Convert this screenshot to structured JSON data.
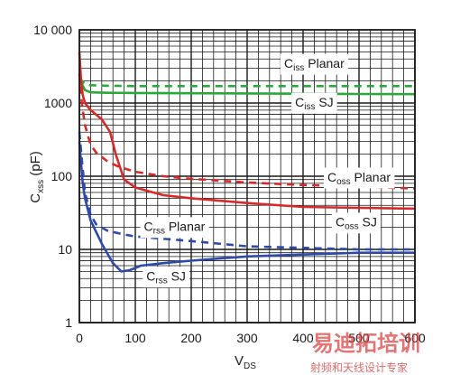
{
  "chart_data": {
    "type": "line",
    "x_axis": {
      "label": "V",
      "label_sub": "DS",
      "range": [
        0,
        600
      ],
      "ticks": [
        0,
        100,
        200,
        300,
        400,
        500,
        600
      ]
    },
    "y_axis": {
      "label": "C",
      "label_sub": "xss",
      "label_suffix": " (pF)",
      "scale": "log",
      "range": [
        1,
        10000
      ],
      "ticks": [
        1,
        10,
        100,
        1000,
        10000
      ],
      "tick_labels": [
        "1",
        "10",
        "100",
        "1000",
        "10 000"
      ]
    },
    "grid": true,
    "series": [
      {
        "name": "Ciss Planar",
        "label_main": "C",
        "label_sub": "iss",
        "label_rest": " Planar",
        "color": "#2aa83a",
        "dash": true,
        "x": [
          0,
          5,
          10,
          20,
          50,
          100,
          200,
          300,
          400,
          500,
          600
        ],
        "y": [
          2200,
          2000,
          1800,
          1750,
          1720,
          1700,
          1700,
          1700,
          1700,
          1700,
          1700
        ]
      },
      {
        "name": "Ciss SJ",
        "label_main": "C",
        "label_sub": "iss",
        "label_rest": " SJ",
        "color": "#2aa83a",
        "dash": false,
        "x": [
          0,
          5,
          10,
          20,
          50,
          100,
          200,
          300,
          400,
          500,
          600
        ],
        "y": [
          2500,
          1800,
          1500,
          1400,
          1380,
          1370,
          1360,
          1350,
          1340,
          1330,
          1320
        ]
      },
      {
        "name": "Coss Planar",
        "label_main": "C",
        "label_sub": "oss",
        "label_rest": " Planar",
        "color": "#d42a2a",
        "dash": true,
        "x": [
          0,
          5,
          10,
          20,
          30,
          50,
          70,
          100,
          150,
          200,
          300,
          400,
          500,
          600
        ],
        "y": [
          2500,
          900,
          500,
          270,
          210,
          160,
          135,
          115,
          100,
          92,
          82,
          76,
          72,
          68
        ]
      },
      {
        "name": "Coss SJ",
        "label_main": "C",
        "label_sub": "oss",
        "label_rest": " SJ",
        "color": "#d42a2a",
        "dash": false,
        "x": [
          0,
          3,
          6,
          10,
          20,
          40,
          55,
          65,
          80,
          100,
          150,
          200,
          300,
          400,
          500,
          600
        ],
        "y": [
          5000,
          2000,
          1300,
          1000,
          800,
          600,
          400,
          200,
          90,
          70,
          55,
          50,
          43,
          38,
          37,
          36
        ]
      },
      {
        "name": "Crss Planar",
        "label_main": "C",
        "label_sub": "rss",
        "label_rest": " Planar",
        "color": "#2d4aa8",
        "dash": true,
        "x": [
          0,
          5,
          10,
          20,
          30,
          50,
          80,
          100,
          150,
          200,
          300,
          400,
          500,
          600
        ],
        "y": [
          400,
          150,
          60,
          30,
          22,
          18,
          16,
          15,
          14,
          13,
          11,
          10.5,
          10,
          10
        ]
      },
      {
        "name": "Crss SJ",
        "label_main": "C",
        "label_sub": "rss",
        "label_rest": " SJ",
        "color": "#2d4aa8",
        "dash": false,
        "x": [
          0,
          3,
          6,
          10,
          20,
          40,
          60,
          75,
          90,
          110,
          150,
          200,
          250,
          300,
          400,
          500,
          600
        ],
        "y": [
          300,
          150,
          80,
          50,
          25,
          12,
          6.5,
          5,
          5.2,
          6,
          6.5,
          7,
          7.5,
          8,
          8.5,
          9,
          9
        ]
      }
    ]
  },
  "watermark": {
    "main": "易迪拓培训",
    "sub": "射频和天线设计专家"
  }
}
